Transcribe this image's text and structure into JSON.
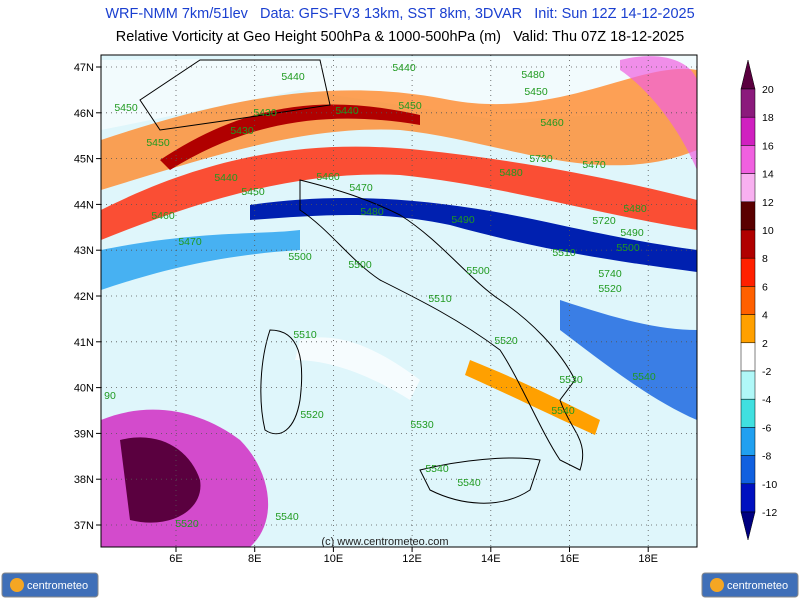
{
  "header": {
    "line1": "WRF-NMM 7km/51lev   Data: GFS-FV3 13km, SST 8km, 3DVAR   Init: Sun 12Z 14-12-2025",
    "line2": "Relative Vorticity at Geo Height 500hPa & 1000-500hPa (m)   Valid: Thu 07Z 18-12-2025"
  },
  "map": {
    "lat_labels": [
      "47N",
      "46N",
      "45N",
      "44N",
      "43N",
      "42N",
      "41N",
      "40N",
      "39N",
      "38N",
      "37N"
    ],
    "lon_labels": [
      "6E",
      "8E",
      "10E",
      "12E",
      "14E",
      "16E",
      "18E"
    ],
    "contour_labels": [
      "5440",
      "5440",
      "5450",
      "5430",
      "5430",
      "5440",
      "5450",
      "5450",
      "5440",
      "5450",
      "5460",
      "5470",
      "5460",
      "5480",
      "5490",
      "5470",
      "5500",
      "5500",
      "5500",
      "5510",
      "5510",
      "5500",
      "5490",
      "5480",
      "5720",
      "5740",
      "5520",
      "5510",
      "5520",
      "5520",
      "5530",
      "5530",
      "5540",
      "5540",
      "5540",
      "5540",
      "5540",
      "5520",
      "5450",
      "5480",
      "5460",
      "5470",
      "5480",
      "5730",
      "90"
    ],
    "watermark": "(c) www.centrometeo.com"
  },
  "colorbar": {
    "labels": [
      20,
      18,
      16,
      14,
      12,
      10,
      8,
      6,
      4,
      2,
      -2,
      -4,
      -6,
      -8,
      -10,
      -12
    ],
    "colors": [
      "#5a003f",
      "#8b1a7c",
      "#d020c0",
      "#f060e0",
      "#f8b0f0",
      "#5a0000",
      "#b00000",
      "#ff2000",
      "#ff6000",
      "#ffa000",
      "#ffffff",
      "#b0f8f8",
      "#40e0e0",
      "#20a0f0",
      "#1060e0",
      "#0010c0",
      "#000080"
    ]
  },
  "footer": {
    "logo_left": "centrometeo",
    "logo_right": "centrometeo"
  }
}
